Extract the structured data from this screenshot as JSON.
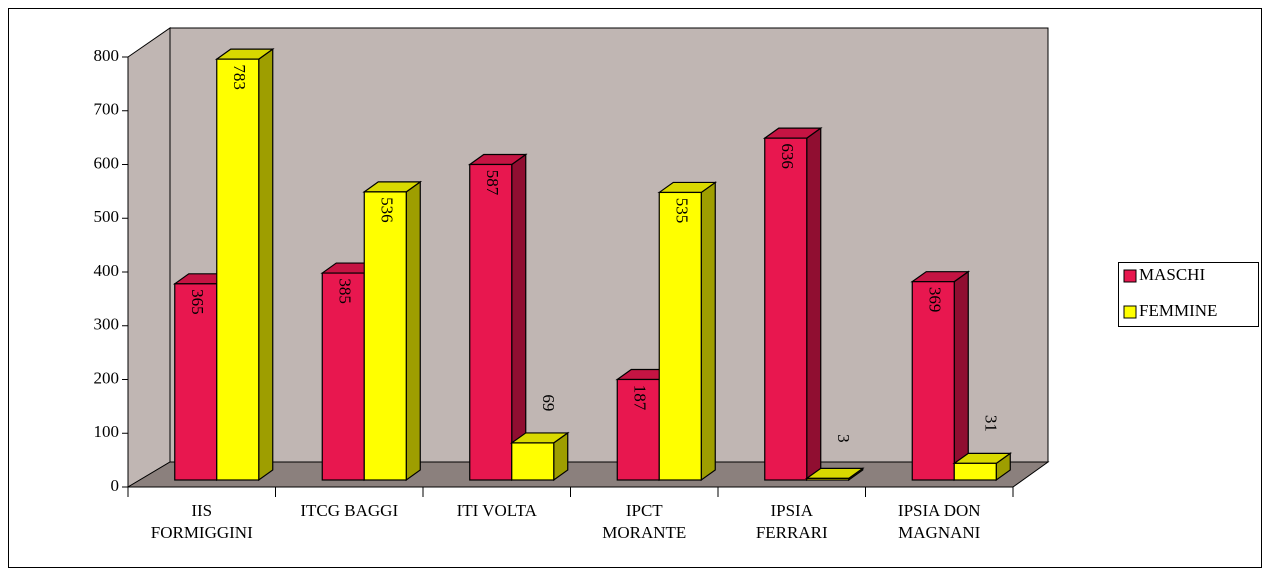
{
  "chart_data": {
    "type": "bar3d",
    "categories": [
      "IIS FORMIGGINI",
      "ITCG BAGGI",
      "ITI VOLTA",
      "IPCT MORANTE",
      "IPSIA FERRARI",
      "IPSIA DON MAGNANI"
    ],
    "series": [
      {
        "name": "MASCHI",
        "color": "#e8174f",
        "values": [
          365,
          385,
          587,
          187,
          636,
          369
        ]
      },
      {
        "name": "FEMMINE",
        "color": "#ffff00",
        "values": [
          783,
          536,
          69,
          535,
          3,
          31
        ]
      }
    ],
    "ylim": [
      0,
      800
    ],
    "yticks": [
      0,
      100,
      200,
      300,
      400,
      500,
      600,
      700,
      800
    ],
    "legend": "right"
  }
}
